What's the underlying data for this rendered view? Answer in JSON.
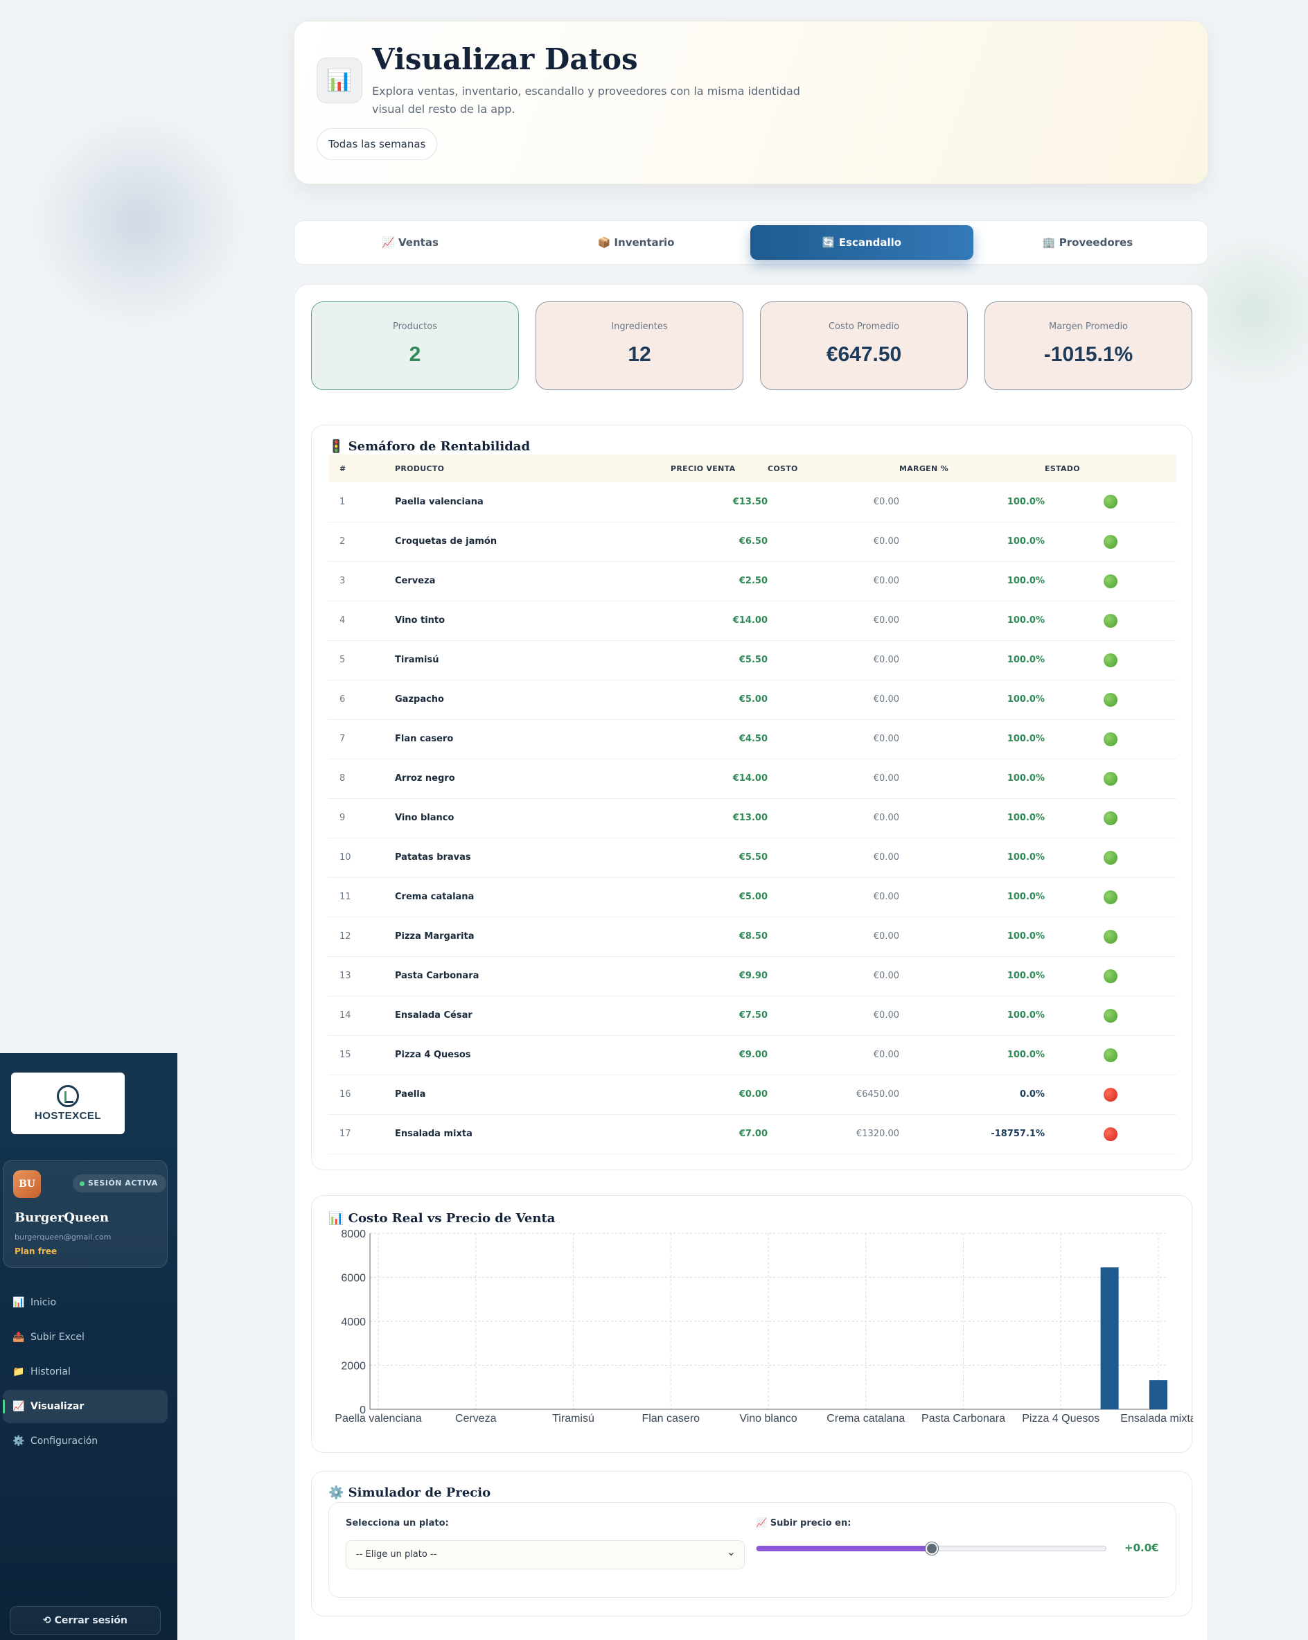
{
  "sidebar": {
    "logo_text": "HOSTEXCEL",
    "user": {
      "initials": "BU",
      "session_badge": "SESIÓN ACTIVA",
      "name": "BurgerQueen",
      "email": "burgerqueen@gmail.com",
      "plan": "Plan free"
    },
    "nav": [
      {
        "icon": "📊",
        "label": "Inicio",
        "active": false
      },
      {
        "icon": "📤",
        "label": "Subir Excel",
        "active": false
      },
      {
        "icon": "📁",
        "label": "Historial",
        "active": false
      },
      {
        "icon": "📈",
        "label": "Visualizar",
        "active": true
      },
      {
        "icon": "⚙️",
        "label": "Configuración",
        "active": false
      }
    ],
    "logout": "⟲  Cerrar sesión"
  },
  "hero": {
    "icon": "📊",
    "title": "Visualizar Datos",
    "subtitle": "Explora ventas, inventario, escandallo y proveedores con la misma identidad visual del resto de la app.",
    "week_filter": "Todas las semanas"
  },
  "tabs": [
    {
      "label": "📈 Ventas",
      "active": false
    },
    {
      "label": "📦 Inventario",
      "active": false
    },
    {
      "label": "🔄 Escandallo",
      "active": true
    },
    {
      "label": "🏢 Proveedores",
      "active": false
    }
  ],
  "kpis": [
    {
      "label": "Productos",
      "value": "2"
    },
    {
      "label": "Ingredientes",
      "value": "12"
    },
    {
      "label": "Costo Promedio",
      "value": "€647.50"
    },
    {
      "label": "Margen Promedio",
      "value": "-1015.1%"
    }
  ],
  "semaforo": {
    "title": "🚦 Semáforo de Rentabilidad",
    "headers": [
      "#",
      "PRODUCTO",
      "PRECIO VENTA",
      "COSTO",
      "MARGEN %",
      "ESTADO"
    ],
    "rows": [
      {
        "n": "1",
        "product": "Paella valenciana",
        "price": "€13.50",
        "cost": "€0.00",
        "margin": "100.0%",
        "status": "green"
      },
      {
        "n": "2",
        "product": "Croquetas de jamón",
        "price": "€6.50",
        "cost": "€0.00",
        "margin": "100.0%",
        "status": "green"
      },
      {
        "n": "3",
        "product": "Cerveza",
        "price": "€2.50",
        "cost": "€0.00",
        "margin": "100.0%",
        "status": "green"
      },
      {
        "n": "4",
        "product": "Vino tinto",
        "price": "€14.00",
        "cost": "€0.00",
        "margin": "100.0%",
        "status": "green"
      },
      {
        "n": "5",
        "product": "Tiramisú",
        "price": "€5.50",
        "cost": "€0.00",
        "margin": "100.0%",
        "status": "green"
      },
      {
        "n": "6",
        "product": "Gazpacho",
        "price": "€5.00",
        "cost": "€0.00",
        "margin": "100.0%",
        "status": "green"
      },
      {
        "n": "7",
        "product": "Flan casero",
        "price": "€4.50",
        "cost": "€0.00",
        "margin": "100.0%",
        "status": "green"
      },
      {
        "n": "8",
        "product": "Arroz negro",
        "price": "€14.00",
        "cost": "€0.00",
        "margin": "100.0%",
        "status": "green"
      },
      {
        "n": "9",
        "product": "Vino blanco",
        "price": "€13.00",
        "cost": "€0.00",
        "margin": "100.0%",
        "status": "green"
      },
      {
        "n": "10",
        "product": "Patatas bravas",
        "price": "€5.50",
        "cost": "€0.00",
        "margin": "100.0%",
        "status": "green"
      },
      {
        "n": "11",
        "product": "Crema catalana",
        "price": "€5.00",
        "cost": "€0.00",
        "margin": "100.0%",
        "status": "green"
      },
      {
        "n": "12",
        "product": "Pizza Margarita",
        "price": "€8.50",
        "cost": "€0.00",
        "margin": "100.0%",
        "status": "green"
      },
      {
        "n": "13",
        "product": "Pasta Carbonara",
        "price": "€9.90",
        "cost": "€0.00",
        "margin": "100.0%",
        "status": "green"
      },
      {
        "n": "14",
        "product": "Ensalada César",
        "price": "€7.50",
        "cost": "€0.00",
        "margin": "100.0%",
        "status": "green"
      },
      {
        "n": "15",
        "product": "Pizza 4 Quesos",
        "price": "€9.00",
        "cost": "€0.00",
        "margin": "100.0%",
        "status": "green"
      },
      {
        "n": "16",
        "product": "Paella",
        "price": "€0.00",
        "cost": "€6450.00",
        "margin": "0.0%",
        "status": "red"
      },
      {
        "n": "17",
        "product": "Ensalada mixta",
        "price": "€7.00",
        "cost": "€1320.00",
        "margin": "-18757.1%",
        "status": "red"
      }
    ]
  },
  "chart_title": "📊 Costo Real vs Precio de Venta",
  "chart_data": {
    "type": "bar",
    "title": "",
    "categories": [
      "Paella valenciana",
      "Croquetas de jamón",
      "Cerveza",
      "Vino tinto",
      "Tiramisú",
      "Gazpacho",
      "Flan casero",
      "Arroz negro",
      "Vino blanco",
      "Patatas bravas",
      "Crema catalana",
      "Pizza Margarita",
      "Pasta Carbonara",
      "Ensalada César",
      "Pizza 4 Quesos",
      "Paella",
      "Ensalada mixta"
    ],
    "tick_labels": [
      "Paella valenciana",
      "Cerveza",
      "Tiramisú",
      "Flan casero",
      "Vino blanco",
      "Crema catalana",
      "Pasta Carbonara",
      "Pizza 4 Quesos",
      "Ensalada mixta"
    ],
    "series": [
      {
        "values": [
          0,
          0,
          0,
          0,
          0,
          0,
          0,
          0,
          0,
          0,
          0,
          0,
          0,
          0,
          0,
          6450,
          1320
        ],
        "color": "#1f5a8f"
      }
    ],
    "ylim": [
      0,
      8000
    ],
    "yticks": [
      0,
      2000,
      4000,
      6000,
      8000
    ],
    "grid": true
  },
  "simulator": {
    "title": "⚙️ Simulador de Precio",
    "select_label": "Selecciona un plato:",
    "select_value": "-- Elige un plato --",
    "slider_label": "📈 Subir precio en:",
    "slider_value_text": "+0.0€",
    "slider_fraction": 0.5
  },
  "colors": {
    "accent": "#1e5b90",
    "positive": "#2f8a57",
    "slider": "#8a58d6"
  }
}
